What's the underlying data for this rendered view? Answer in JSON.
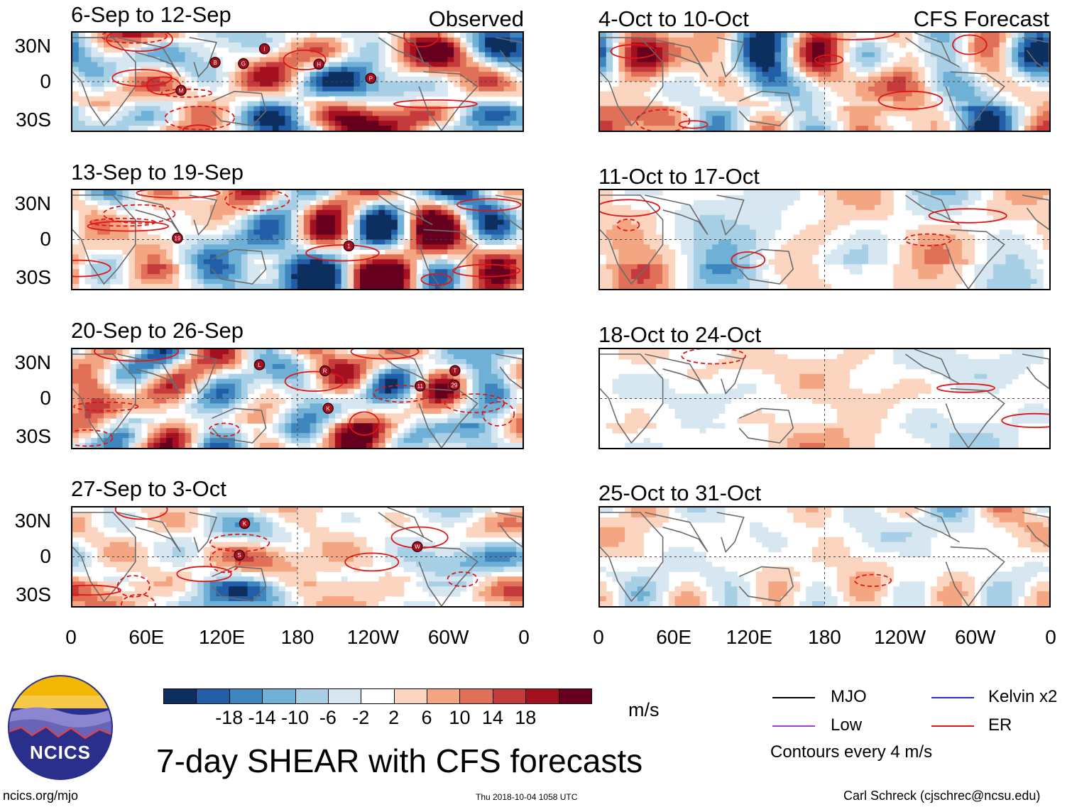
{
  "chart_data": {
    "type": "heatmap",
    "title": "7-day SHEAR with CFS forecasts",
    "units": "m/s",
    "colorbar": {
      "ticks": [
        "-18",
        "-14",
        "-10",
        "-6",
        "-2",
        "2",
        "6",
        "10",
        "14",
        "18"
      ],
      "colors": [
        "#0d2f5f",
        "#225ea8",
        "#3f86bf",
        "#6fb0d6",
        "#a7cfe5",
        "#d7e7f1",
        "#ffffff",
        "#fbd5bf",
        "#f4a582",
        "#e07058",
        "#c53a3a",
        "#a4101f",
        "#67001f"
      ]
    },
    "y_ticks": [
      "30N",
      "0",
      "30S"
    ],
    "x_ticks": [
      "0",
      "60E",
      "120E",
      "180",
      "120W",
      "60W",
      "0"
    ],
    "observed_label": "Observed",
    "forecast_label": "CFS Forecast",
    "observed_panels": [
      {
        "title": "6-Sep to 12-Sep",
        "storms": [
          "G",
          "B",
          "M",
          "P",
          "I",
          "H"
        ]
      },
      {
        "title": "13-Sep to 19-Sep",
        "storms": [
          "1",
          "19"
        ]
      },
      {
        "title": "20-Sep to 26-Sep",
        "storms": [
          "29",
          "T",
          "R",
          "L",
          "11",
          "K"
        ]
      },
      {
        "title": "27-Sep to 3-Oct",
        "storms": [
          "K",
          "W",
          "S"
        ]
      }
    ],
    "forecast_panels": [
      {
        "title": "4-Oct to 10-Oct"
      },
      {
        "title": "11-Oct to 17-Oct"
      },
      {
        "title": "18-Oct to 24-Oct"
      },
      {
        "title": "25-Oct to 31-Oct"
      }
    ],
    "legend": {
      "items": [
        {
          "label": "MJO",
          "color": "#000000"
        },
        {
          "label": "Kelvin x2",
          "color": "#1f2fd6"
        },
        {
          "label": "Low",
          "color": "#9b3fd8"
        },
        {
          "label": "ER",
          "color": "#e01515"
        }
      ],
      "note": "Contours every 4 m/s"
    }
  },
  "logo": {
    "text": "NCICS"
  },
  "footer": {
    "url": "ncics.org/mjo",
    "timestamp": "Thu 2018-10-04 1058 UTC",
    "credit": "Carl Schreck (cjschrec@ncsu.edu)"
  }
}
